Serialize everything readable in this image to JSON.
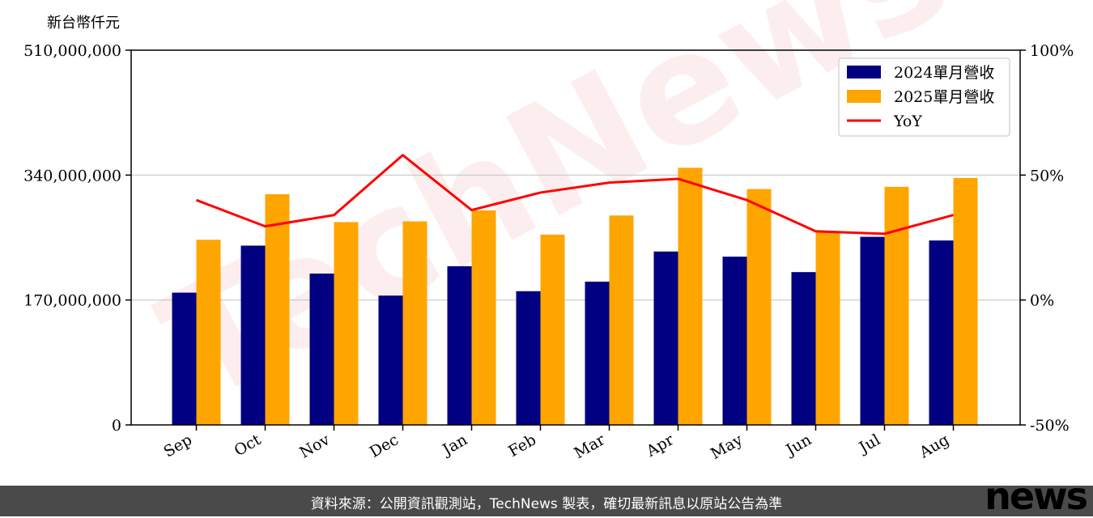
{
  "chart_data": {
    "type": "bar",
    "y_unit_label": "新台幣仟元",
    "categories": [
      "Sep",
      "Oct",
      "Nov",
      "Dec",
      "Jan",
      "Feb",
      "Mar",
      "Apr",
      "May",
      "Jun",
      "Jul",
      "Aug"
    ],
    "series": [
      {
        "name": "2024單月營收",
        "type": "bar",
        "color": "#000080",
        "values": [
          180000000,
          244000000,
          206000000,
          176000000,
          216000000,
          182000000,
          195000000,
          236000000,
          229000000,
          208000000,
          256000000,
          251000000
        ]
      },
      {
        "name": "2025單月營收",
        "type": "bar",
        "color": "#ffa500",
        "values": [
          252000000,
          314000000,
          276000000,
          277000000,
          292000000,
          259000000,
          285000000,
          350000000,
          321000000,
          263000000,
          324000000,
          336000000
        ]
      },
      {
        "name": "YoY",
        "type": "line",
        "axis": "right",
        "color": "#ff0000",
        "values": [
          40,
          29.5,
          34,
          58,
          36,
          43,
          47,
          48.5,
          40,
          27.5,
          26.5,
          34
        ]
      }
    ],
    "ylim": [
      0,
      510000000
    ],
    "y_ticks": [
      "0",
      "170,000,000",
      "340,000,000",
      "510,000,000"
    ],
    "y_tick_values": [
      0,
      170000000,
      340000000,
      510000000
    ],
    "y2lim": [
      -50,
      100
    ],
    "y2_ticks": [
      "-50%",
      "0%",
      "50%",
      "100%"
    ],
    "y2_tick_values": [
      -50,
      0,
      50,
      100
    ],
    "grid": "horizontal",
    "legend_position": "top-right"
  },
  "watermark": "TechNews",
  "footer": {
    "source_text": "資料來源：公開資訊觀測站，TechNews 製表，確切最新訊息以原站公告為準",
    "logo": "news"
  }
}
